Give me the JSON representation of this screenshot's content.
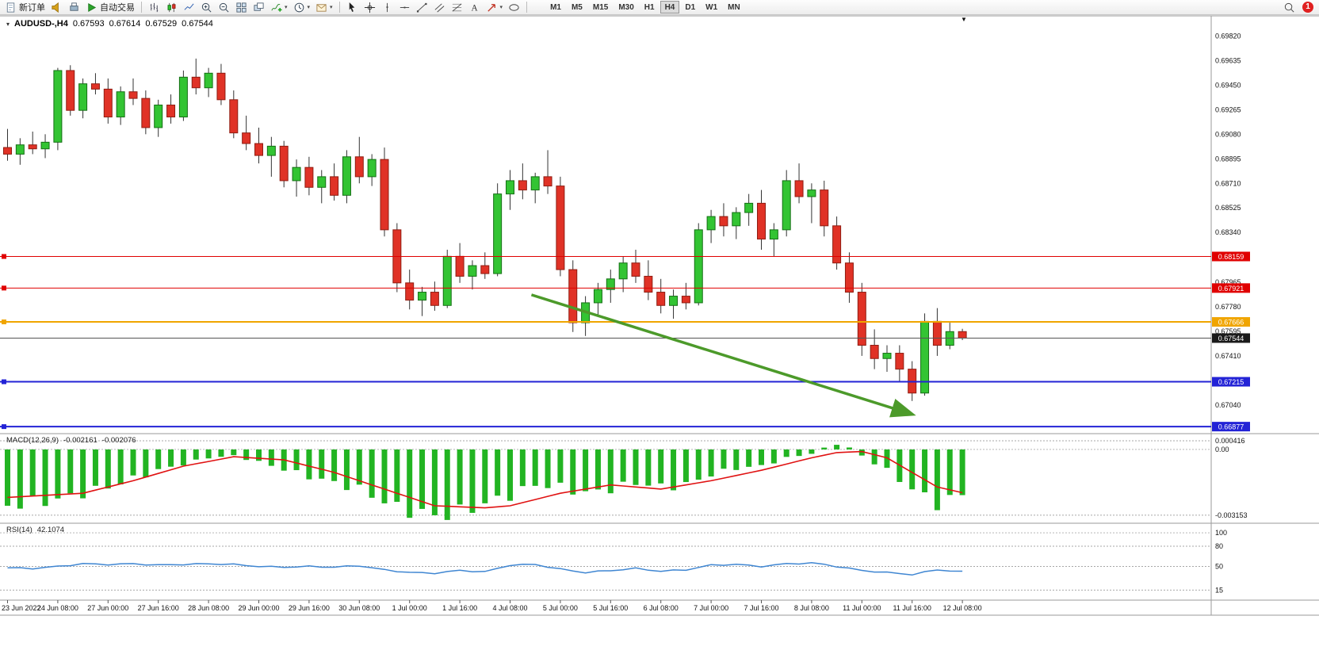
{
  "toolbar": {
    "new_order_label": "新订单",
    "autotrade_label": "自动交易",
    "timeframes": [
      "M1",
      "M5",
      "M15",
      "M30",
      "H1",
      "H4",
      "D1",
      "W1",
      "MN"
    ],
    "active_timeframe": "H4",
    "notification_count": "1",
    "icons": [
      "document-icon",
      "horn-icon",
      "printer-icon",
      "play-icon",
      "bar-chart-icon",
      "candlestick-icon",
      "line-chart-icon",
      "zoom-in-icon",
      "zoom-out-icon",
      "tile-windows-icon",
      "cascade-windows-icon",
      "indicators-icon",
      "clock-icon",
      "envelope-icon",
      "cursor-icon",
      "crosshair-icon",
      "vertical-line-icon",
      "horizontal-line-icon",
      "trendline-icon",
      "channel-icon",
      "fibonacci-icon",
      "text-icon",
      "arrows-icon",
      "ellipse-icon",
      "search-icon"
    ]
  },
  "chart_title": {
    "symbol": "AUDUSD-,H4",
    "open": "0.67593",
    "high": "0.67614",
    "low": "0.67529",
    "close": "0.67544"
  },
  "chart_data": {
    "type": "candlestick",
    "symbol": "AUDUSD-",
    "period": "H4",
    "ylim": [
      0.6683,
      0.6996
    ],
    "price_ticks": [
      "0.69820",
      "0.69635",
      "0.69450",
      "0.69265",
      "0.69080",
      "0.68895",
      "0.68710",
      "0.68525",
      "0.68340",
      "0.67965",
      "0.67780",
      "0.67595",
      "0.67410",
      "0.67040"
    ],
    "time_labels": [
      "23 Jun 2022",
      "24 Jun 08:00",
      "27 Jun 00:00",
      "27 Jun 16:00",
      "28 Jun 08:00",
      "29 Jun 00:00",
      "29 Jun 16:00",
      "30 Jun 08:00",
      "1 Jul 00:00",
      "1 Jul 16:00",
      "4 Jul 08:00",
      "5 Jul 00:00",
      "5 Jul 16:00",
      "6 Jul 08:00",
      "7 Jul 00:00",
      "7 Jul 16:00",
      "8 Jul 08:00",
      "11 Jul 00:00",
      "11 Jul 16:00",
      "12 Jul 08:00"
    ],
    "label_every": 4,
    "candles": [
      [
        0.6898,
        0.6912,
        0.6888,
        0.6893
      ],
      [
        0.6893,
        0.6905,
        0.6885,
        0.69
      ],
      [
        0.69,
        0.691,
        0.6893,
        0.6897
      ],
      [
        0.6897,
        0.6908,
        0.689,
        0.6902
      ],
      [
        0.6902,
        0.6958,
        0.6896,
        0.6956
      ],
      [
        0.6956,
        0.696,
        0.6922,
        0.6926
      ],
      [
        0.6926,
        0.695,
        0.692,
        0.6946
      ],
      [
        0.6946,
        0.6954,
        0.6938,
        0.6942
      ],
      [
        0.6942,
        0.695,
        0.6916,
        0.6921
      ],
      [
        0.6921,
        0.6944,
        0.6915,
        0.694
      ],
      [
        0.694,
        0.695,
        0.693,
        0.6935
      ],
      [
        0.6935,
        0.6941,
        0.6908,
        0.6913
      ],
      [
        0.6913,
        0.6934,
        0.6906,
        0.693
      ],
      [
        0.693,
        0.6938,
        0.6916,
        0.6921
      ],
      [
        0.6921,
        0.6956,
        0.6918,
        0.6951
      ],
      [
        0.6951,
        0.6965,
        0.6938,
        0.6943
      ],
      [
        0.6943,
        0.6958,
        0.6936,
        0.6954
      ],
      [
        0.6954,
        0.6961,
        0.693,
        0.6934
      ],
      [
        0.6934,
        0.6941,
        0.6905,
        0.6909
      ],
      [
        0.6909,
        0.6922,
        0.6896,
        0.6901
      ],
      [
        0.6901,
        0.6913,
        0.6886,
        0.6892
      ],
      [
        0.6892,
        0.6906,
        0.6876,
        0.6899
      ],
      [
        0.6899,
        0.6903,
        0.6868,
        0.6873
      ],
      [
        0.6873,
        0.6889,
        0.6861,
        0.6883
      ],
      [
        0.6883,
        0.6891,
        0.6862,
        0.6868
      ],
      [
        0.6868,
        0.6881,
        0.6856,
        0.6876
      ],
      [
        0.6876,
        0.6886,
        0.6858,
        0.6862
      ],
      [
        0.6862,
        0.6896,
        0.6856,
        0.6891
      ],
      [
        0.6891,
        0.6906,
        0.6871,
        0.6876
      ],
      [
        0.6876,
        0.6893,
        0.6869,
        0.6889
      ],
      [
        0.6889,
        0.6898,
        0.6831,
        0.6836
      ],
      [
        0.6836,
        0.6841,
        0.6789,
        0.6796
      ],
      [
        0.6796,
        0.6806,
        0.6776,
        0.6783
      ],
      [
        0.6783,
        0.6793,
        0.6771,
        0.6789
      ],
      [
        0.6789,
        0.6797,
        0.6775,
        0.6779
      ],
      [
        0.6779,
        0.6821,
        0.6777,
        0.6816
      ],
      [
        0.6816,
        0.6826,
        0.6796,
        0.6801
      ],
      [
        0.6801,
        0.6813,
        0.6791,
        0.6809
      ],
      [
        0.6809,
        0.6819,
        0.6799,
        0.6803
      ],
      [
        0.6803,
        0.6871,
        0.6801,
        0.6863
      ],
      [
        0.6863,
        0.6881,
        0.6851,
        0.6873
      ],
      [
        0.6873,
        0.6886,
        0.6859,
        0.6866
      ],
      [
        0.6866,
        0.6879,
        0.6856,
        0.6876
      ],
      [
        0.6876,
        0.6896,
        0.6863,
        0.6869
      ],
      [
        0.6869,
        0.6876,
        0.6801,
        0.6806
      ],
      [
        0.6806,
        0.6813,
        0.6759,
        0.6766
      ],
      [
        0.6766,
        0.6786,
        0.6756,
        0.6781
      ],
      [
        0.6781,
        0.6796,
        0.6771,
        0.6791
      ],
      [
        0.6791,
        0.6806,
        0.6781,
        0.6799
      ],
      [
        0.6799,
        0.6816,
        0.6789,
        0.6811
      ],
      [
        0.6811,
        0.6821,
        0.6796,
        0.6801
      ],
      [
        0.6801,
        0.6813,
        0.6783,
        0.6789
      ],
      [
        0.6789,
        0.6799,
        0.6773,
        0.6779
      ],
      [
        0.6779,
        0.6791,
        0.6769,
        0.6786
      ],
      [
        0.6786,
        0.6796,
        0.6776,
        0.6781
      ],
      [
        0.6781,
        0.6841,
        0.6779,
        0.6836
      ],
      [
        0.6836,
        0.6851,
        0.6826,
        0.6846
      ],
      [
        0.6846,
        0.6856,
        0.6831,
        0.6839
      ],
      [
        0.6839,
        0.6853,
        0.6829,
        0.6849
      ],
      [
        0.6849,
        0.6863,
        0.6839,
        0.6856
      ],
      [
        0.6856,
        0.6866,
        0.6821,
        0.6829
      ],
      [
        0.6829,
        0.6841,
        0.6816,
        0.6836
      ],
      [
        0.6836,
        0.6881,
        0.6831,
        0.6873
      ],
      [
        0.6873,
        0.6886,
        0.6856,
        0.6861
      ],
      [
        0.6861,
        0.6871,
        0.6841,
        0.6866
      ],
      [
        0.6866,
        0.6873,
        0.6831,
        0.6839
      ],
      [
        0.6839,
        0.6846,
        0.6806,
        0.6811
      ],
      [
        0.6811,
        0.6819,
        0.6781,
        0.6789
      ],
      [
        0.6789,
        0.6796,
        0.6741,
        0.6749
      ],
      [
        0.6749,
        0.6761,
        0.6731,
        0.6739
      ],
      [
        0.6739,
        0.6749,
        0.6729,
        0.6743
      ],
      [
        0.6743,
        0.6749,
        0.6721,
        0.6731
      ],
      [
        0.6731,
        0.6737,
        0.6707,
        0.6713
      ],
      [
        0.6713,
        0.6773,
        0.6711,
        0.6767
      ],
      [
        0.6767,
        0.6777,
        0.6741,
        0.6749
      ],
      [
        0.6749,
        0.6766,
        0.6746,
        0.67593
      ],
      [
        0.67593,
        0.67614,
        0.67529,
        0.67544
      ]
    ],
    "hlines": [
      {
        "price": 0.68159,
        "label": "0.68159",
        "color": "#e00000",
        "width": 1
      },
      {
        "price": 0.67921,
        "label": "0.67921",
        "color": "#e00000",
        "width": 1
      },
      {
        "price": 0.67666,
        "label": "0.67666",
        "color": "#f0a500",
        "width": 2
      },
      {
        "price": 0.67215,
        "label": "0.67215",
        "color": "#2323d6",
        "width": 2
      },
      {
        "price": 0.66877,
        "label": "0.66877",
        "color": "#2323d6",
        "width": 2
      }
    ],
    "bid_line": {
      "price": 0.67544,
      "label": "0.67544",
      "color": "#1a1a1a"
    },
    "arrow": {
      "from_index": 41.7,
      "from_price": 0.6787,
      "to_index": 72.0,
      "to_price": 0.6697,
      "color": "#4c9a2a"
    },
    "colors": {
      "bull": "#33c433",
      "bull_border": "#156f15",
      "bear": "#e03226",
      "bear_border": "#8f1d12",
      "wick": "#333333"
    },
    "macd": {
      "label": "MACD(12,26,9)",
      "value_main": "-0.002161",
      "value_signal": "-0.002076",
      "scale_labels": [
        {
          "v": 0.000416,
          "t": "0.000416"
        },
        {
          "v": 0,
          "t": "0.00"
        },
        {
          "v": -0.003153,
          "t": "-0.003153"
        }
      ],
      "range": [
        -0.0035,
        0.00072
      ],
      "hist_color": "#22b422",
      "signal_color": "#e01212",
      "hist_points": [
        [
          0,
          -0.0027
        ],
        [
          4,
          -0.0024
        ],
        [
          8,
          -0.0018
        ],
        [
          12,
          -0.001
        ],
        [
          16,
          -0.0004
        ],
        [
          18,
          -0.0003
        ],
        [
          20,
          -0.0006
        ],
        [
          24,
          -0.0013
        ],
        [
          28,
          -0.0019
        ],
        [
          31,
          -0.0028
        ],
        [
          34,
          -0.0032
        ],
        [
          36,
          -0.003
        ],
        [
          38,
          -0.0026
        ],
        [
          40,
          -0.0022
        ],
        [
          42,
          -0.0017
        ],
        [
          44,
          -0.0018
        ],
        [
          46,
          -0.0021
        ],
        [
          48,
          -0.0019
        ],
        [
          50,
          -0.0016
        ],
        [
          52,
          -0.0018
        ],
        [
          54,
          -0.0017
        ],
        [
          56,
          -0.0012
        ],
        [
          58,
          -0.0009
        ],
        [
          60,
          -0.0008
        ],
        [
          62,
          -0.0004
        ],
        [
          64,
          -0.0002
        ],
        [
          65,
          0.0001
        ],
        [
          66,
          0.0002
        ],
        [
          67,
          0.0001
        ],
        [
          68,
          -0.0003
        ],
        [
          70,
          -0.001
        ],
        [
          72,
          -0.0019
        ],
        [
          74,
          -0.0026
        ],
        [
          75,
          -0.0024
        ],
        [
          76,
          -0.002161
        ]
      ],
      "signal_points": [
        [
          0,
          -0.0023
        ],
        [
          6,
          -0.0021
        ],
        [
          10,
          -0.0015
        ],
        [
          14,
          -0.0008
        ],
        [
          18,
          -0.00035
        ],
        [
          22,
          -0.0005
        ],
        [
          26,
          -0.0011
        ],
        [
          30,
          -0.0019
        ],
        [
          34,
          -0.0027
        ],
        [
          38,
          -0.0028
        ],
        [
          40,
          -0.0027
        ],
        [
          44,
          -0.0021
        ],
        [
          48,
          -0.0017
        ],
        [
          52,
          -0.0019
        ],
        [
          56,
          -0.0015
        ],
        [
          60,
          -0.001
        ],
        [
          64,
          -0.0004
        ],
        [
          66,
          -0.00015
        ],
        [
          68,
          -0.0001
        ],
        [
          70,
          -0.0004
        ],
        [
          72,
          -0.0011
        ],
        [
          74,
          -0.0018
        ],
        [
          76,
          -0.002076
        ]
      ]
    },
    "rsi": {
      "label": "RSI(14)",
      "value": "42.1074",
      "levels": [
        100,
        80,
        50,
        15
      ],
      "range": [
        0,
        113
      ],
      "color": "#3f86d2",
      "points": [
        [
          0,
          48
        ],
        [
          2,
          47
        ],
        [
          4,
          50
        ],
        [
          6,
          54
        ],
        [
          8,
          53
        ],
        [
          10,
          54
        ],
        [
          12,
          52
        ],
        [
          14,
          53
        ],
        [
          16,
          54
        ],
        [
          18,
          53
        ],
        [
          20,
          50
        ],
        [
          22,
          49
        ],
        [
          24,
          50
        ],
        [
          26,
          49
        ],
        [
          28,
          51
        ],
        [
          30,
          45
        ],
        [
          32,
          41
        ],
        [
          34,
          40
        ],
        [
          36,
          44
        ],
        [
          38,
          42
        ],
        [
          40,
          52
        ],
        [
          42,
          53
        ],
        [
          44,
          46
        ],
        [
          46,
          41
        ],
        [
          48,
          44
        ],
        [
          50,
          47
        ],
        [
          52,
          43
        ],
        [
          54,
          45
        ],
        [
          56,
          52
        ],
        [
          58,
          53
        ],
        [
          60,
          50
        ],
        [
          62,
          54
        ],
        [
          64,
          55
        ],
        [
          65,
          53
        ],
        [
          66,
          50
        ],
        [
          68,
          44
        ],
        [
          70,
          41
        ],
        [
          72,
          38
        ],
        [
          74,
          45
        ],
        [
          76,
          42.1
        ]
      ]
    }
  }
}
